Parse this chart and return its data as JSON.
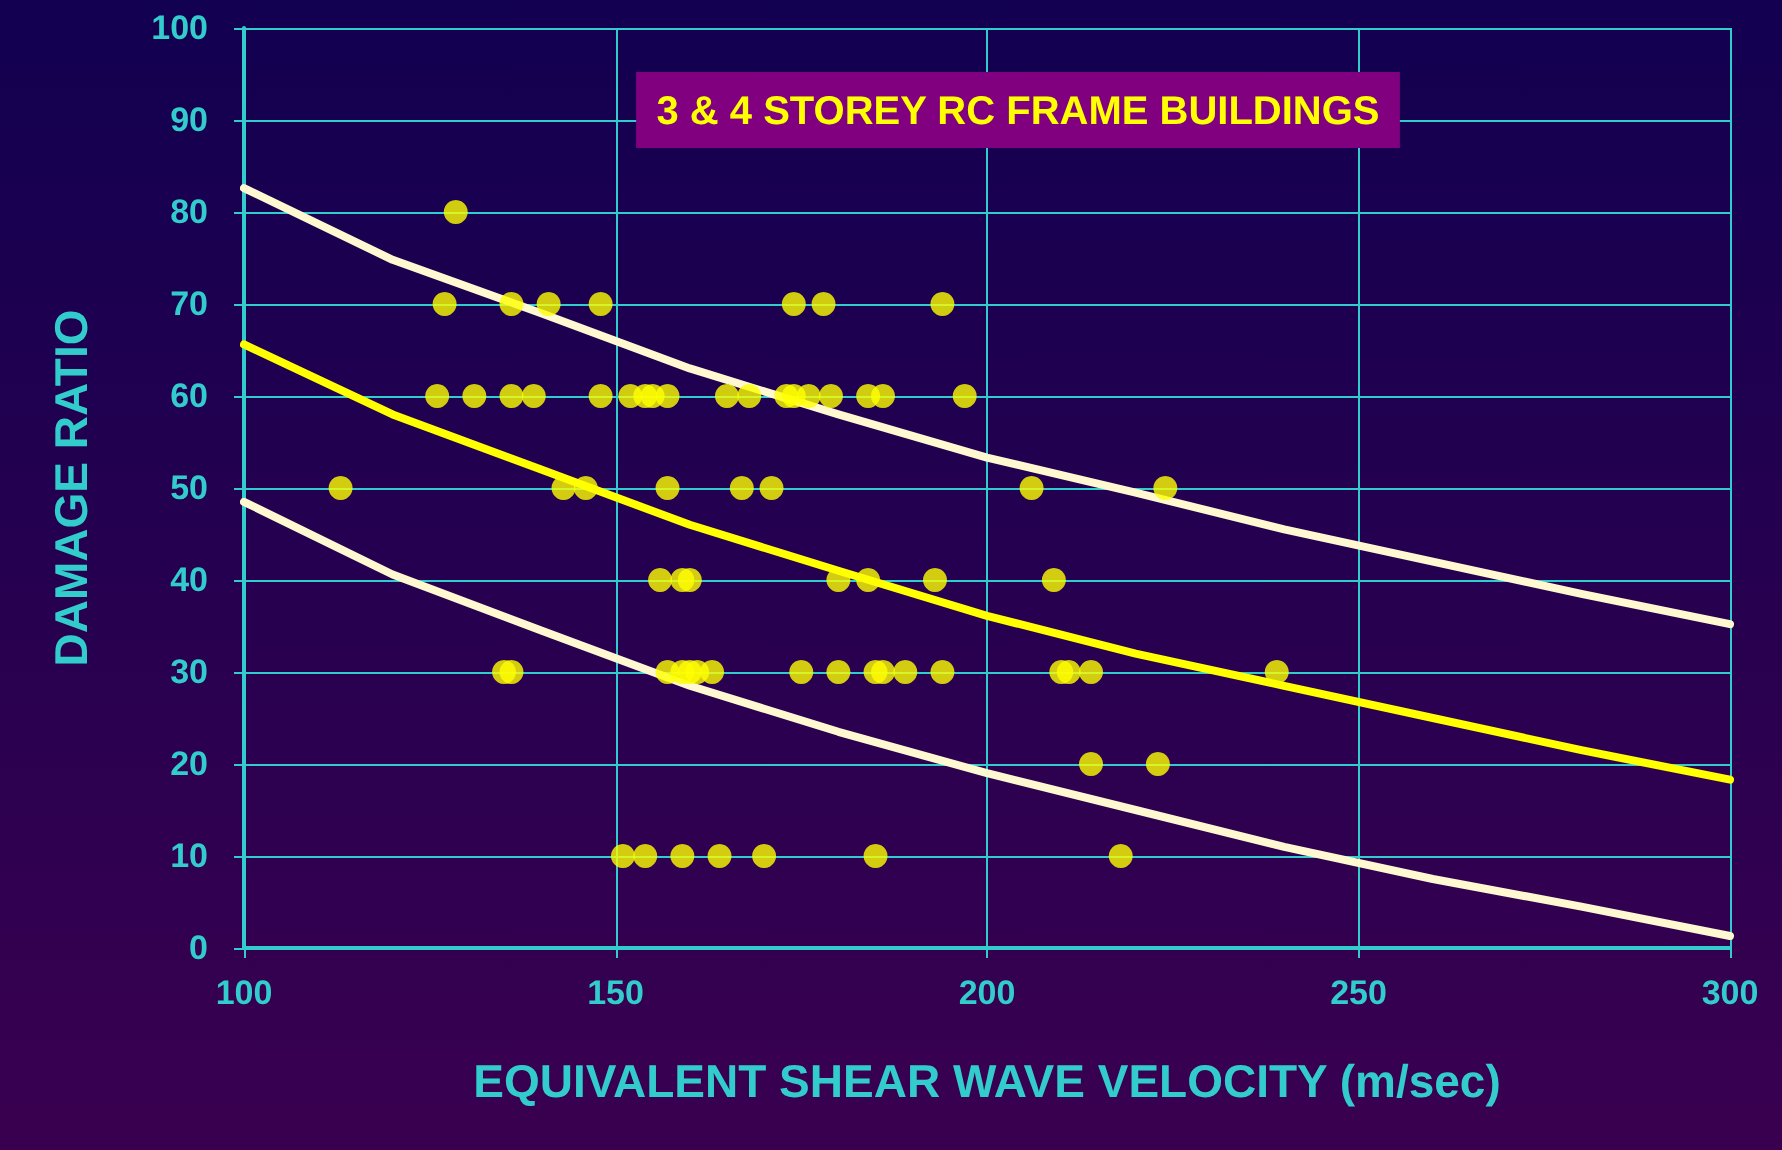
{
  "chart_data": {
    "type": "scatter",
    "title": "3 & 4 STOREY RC FRAME BUILDINGS",
    "xlabel": "EQUIVALENT SHEAR WAVE VELOCITY (m/sec)",
    "ylabel": "DAMAGE RATIO",
    "xlim": [
      100,
      300
    ],
    "xticks": [
      100,
      150,
      200,
      250,
      300
    ],
    "ylim": [
      0,
      100
    ],
    "yticks": [
      0,
      10,
      20,
      30,
      40,
      50,
      60,
      70,
      80,
      90,
      100
    ],
    "grid": true,
    "series": [
      {
        "color": "#ffff00",
        "marker": "circle",
        "x": [
          128.5,
          127,
          136,
          141,
          148,
          174,
          178,
          194,
          126,
          131,
          136,
          139,
          148,
          152,
          154,
          155,
          157,
          165,
          168,
          173,
          174,
          176,
          179,
          184,
          186,
          197,
          113,
          143,
          146,
          157,
          167,
          171,
          206,
          224,
          156,
          159,
          160,
          180,
          184,
          193,
          209,
          135,
          136,
          157,
          159,
          160,
          161,
          163,
          175,
          180,
          185,
          186,
          189,
          194,
          210,
          211,
          214,
          239,
          214,
          223,
          151,
          154,
          159,
          164,
          170,
          185,
          218
        ],
        "values": [
          80,
          70,
          70,
          70,
          70,
          70,
          70,
          70,
          60,
          60,
          60,
          60,
          60,
          60,
          60,
          60,
          60,
          60,
          60,
          60,
          60,
          60,
          60,
          60,
          60,
          60,
          50,
          50,
          50,
          50,
          50,
          50,
          50,
          50,
          40,
          40,
          40,
          40,
          40,
          40,
          40,
          30,
          30,
          30,
          30,
          30,
          30,
          30,
          30,
          30,
          30,
          30,
          30,
          30,
          30,
          30,
          30,
          30,
          20,
          20,
          10,
          10,
          10,
          10,
          10,
          10,
          10
        ]
      },
      {
        "type": "line",
        "color": "#fff8d0",
        "marker": "none",
        "line_style": "solid",
        "x": [
          100,
          120,
          140,
          160,
          180,
          200,
          220,
          240,
          260,
          280,
          300
        ],
        "values": [
          82.6,
          74.8,
          69,
          63,
          58,
          53.3,
          49.5,
          45.5,
          42,
          38.5,
          35.2
        ]
      },
      {
        "type": "line",
        "color": "#ffff00",
        "marker": "none",
        "line_style": "solid",
        "x": [
          100,
          120,
          140,
          160,
          180,
          200,
          220,
          240,
          260,
          280,
          300
        ],
        "values": [
          65.6,
          58,
          52,
          46,
          41,
          36.1,
          32,
          28.5,
          25,
          21.5,
          18.3
        ]
      },
      {
        "type": "line",
        "color": "#fff8d0",
        "marker": "none",
        "line_style": "solid",
        "x": [
          100,
          120,
          140,
          160,
          180,
          200,
          220,
          240,
          260,
          280,
          300
        ],
        "values": [
          48.5,
          40.6,
          34.5,
          28.5,
          23.5,
          19,
          15,
          11,
          7.5,
          4.5,
          1.3
        ]
      }
    ]
  }
}
